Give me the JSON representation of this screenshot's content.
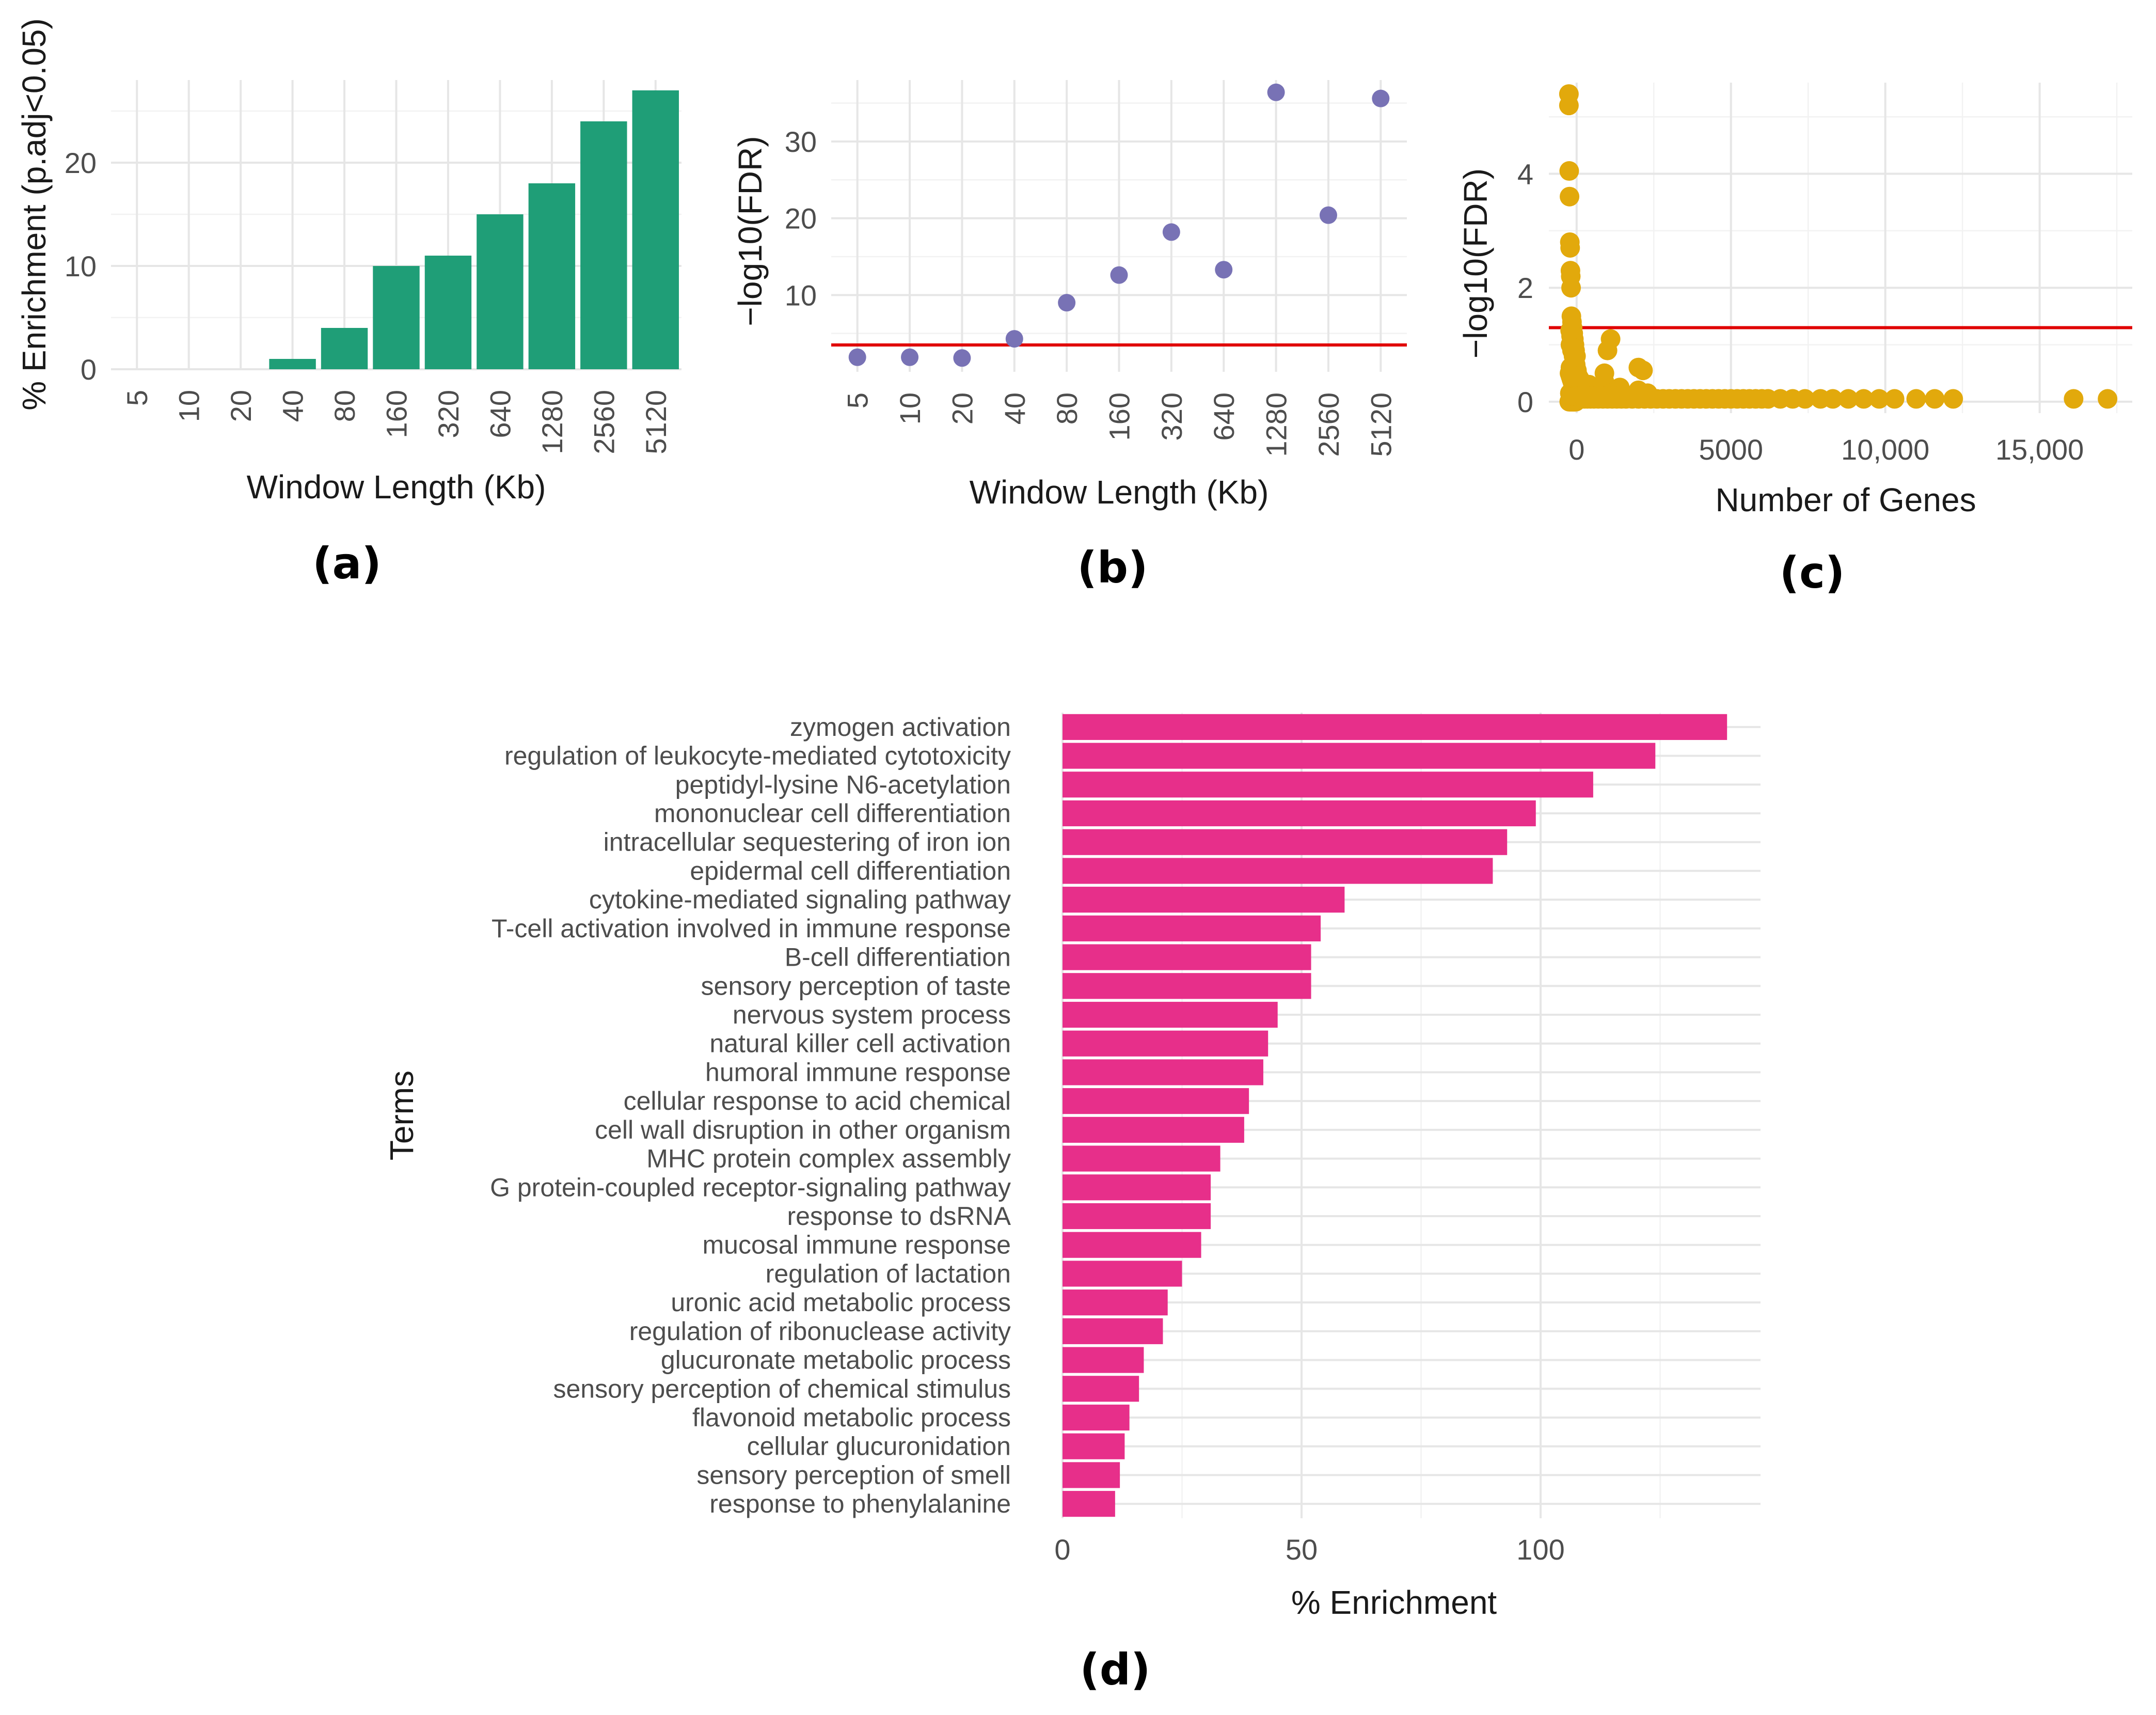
{
  "figure_labels": {
    "a": "(a)",
    "b": "(b)",
    "c": "(c)",
    "d": "(d)"
  },
  "colors": {
    "panel_a": "#1f9e77",
    "panel_b": "#7872b5",
    "panel_c": "#e2a90c",
    "panel_d": "#e72f8a",
    "threshold": "#e00000"
  },
  "chart_data": [
    {
      "id": "a",
      "type": "bar",
      "title": "",
      "xlabel": "Window Length (Kb)",
      "ylabel": "% Enrichment (p.adj<0.05)",
      "categories": [
        "5",
        "10",
        "20",
        "40",
        "80",
        "160",
        "320",
        "640",
        "1280",
        "2560",
        "5120"
      ],
      "values": [
        0,
        0,
        0,
        1,
        4,
        10,
        11,
        15,
        18,
        24,
        27
      ],
      "ylim": [
        0,
        28
      ],
      "yticks": [
        "0",
        "10",
        "20"
      ],
      "grid": true
    },
    {
      "id": "b",
      "type": "scatter",
      "xlabel": "Window Length (Kb)",
      "ylabel": "−log10(FDR)",
      "categories": [
        "5",
        "10",
        "20",
        "40",
        "80",
        "160",
        "320",
        "640",
        "1280",
        "2560",
        "5120"
      ],
      "values": [
        1.9,
        1.9,
        1.8,
        4.3,
        9.0,
        12.6,
        18.2,
        13.3,
        36.4,
        20.4,
        35.6
      ],
      "threshold": 3.5,
      "ylim": [
        0,
        38
      ],
      "yticks": [
        "10",
        "20",
        "30"
      ],
      "grid": true
    },
    {
      "id": "c",
      "type": "scatter",
      "xlabel": "Number of Genes",
      "ylabel": "−log10(FDR)",
      "xticks": [
        "0",
        "5000",
        "10,000",
        "15,000"
      ],
      "yticks": [
        "0",
        "2",
        "4"
      ],
      "xlim": [
        -900,
        18000
      ],
      "ylim": [
        -0.2,
        5.6
      ],
      "threshold": 1.3,
      "x": [
        -250,
        -250,
        -240,
        -230,
        -220,
        -210,
        -200,
        -190,
        -180,
        -170,
        -150,
        -130,
        -110,
        -90,
        -70,
        -50,
        -20,
        -200,
        -150,
        -100,
        -60,
        -20,
        20,
        60,
        120,
        180,
        260,
        350,
        450,
        560,
        700,
        850,
        1000,
        1150,
        1300,
        1450,
        1600,
        1800,
        2000,
        2200,
        2400,
        2600,
        2800,
        3000,
        3200,
        3400,
        3600,
        3800,
        4000,
        4200,
        4400,
        4600,
        4800,
        5000,
        5200,
        5400,
        5600,
        5800,
        6000,
        6200,
        6600,
        7000,
        7400,
        7900,
        8300,
        8800,
        9300,
        9800,
        10300,
        11000,
        11600,
        12200,
        16100,
        17200,
        -200,
        -150,
        -100,
        -60,
        -20,
        -220,
        -180,
        -140,
        -100,
        -60,
        -20,
        200,
        400,
        700,
        900,
        1100,
        1400,
        1700,
        2000,
        2300,
        -230,
        -200,
        -170,
        -140,
        -110,
        -80,
        -40,
        0,
        -210,
        -180,
        -150,
        -120,
        -90,
        -60,
        -30,
        10,
        50,
        100,
        150,
        220,
        300,
        420,
        550,
        -240,
        -210,
        -180,
        -150,
        -120,
        -90,
        -60,
        -30,
        -200,
        -170,
        -140,
        -110,
        -80,
        -50,
        -20,
        20,
        70,
        130,
        200,
        280,
        380,
        500,
        650,
        800,
        950,
        1150,
        1350,
        1600,
        1900,
        1000,
        1100,
        900,
        2000,
        2150
      ],
      "y": [
        5.4,
        5.2,
        4.05,
        3.6,
        2.8,
        2.7,
        2.3,
        2.2,
        2.0,
        1.5,
        1.4,
        1.3,
        1.2,
        1.1,
        1.0,
        0.9,
        0.8,
        0.6,
        0.5,
        0.4,
        0.3,
        0.2,
        0.1,
        0.05,
        0.05,
        0.05,
        0.05,
        0.05,
        0.05,
        0.05,
        0.05,
        0.05,
        0.05,
        0.05,
        0.05,
        0.05,
        0.05,
        0.05,
        0.05,
        0.05,
        0.05,
        0.05,
        0.05,
        0.05,
        0.05,
        0.05,
        0.05,
        0.05,
        0.05,
        0.05,
        0.05,
        0.05,
        0.05,
        0.05,
        0.05,
        0.05,
        0.05,
        0.05,
        0.05,
        0.05,
        0.05,
        0.05,
        0.05,
        0.05,
        0.05,
        0.05,
        0.05,
        0.05,
        0.05,
        0.05,
        0.05,
        0.05,
        0.05,
        0.05,
        1.0,
        0.9,
        0.8,
        0.7,
        0.6,
        0.15,
        0.15,
        0.15,
        0.15,
        0.15,
        0.15,
        0.25,
        0.3,
        0.2,
        0.35,
        0.15,
        0.25,
        0.1,
        0.2,
        0.15,
        0.5,
        0.45,
        0.4,
        0.35,
        0.3,
        0.25,
        0.2,
        0.15,
        1.25,
        1.15,
        1.05,
        0.95,
        0.85,
        0.75,
        0.65,
        0.55,
        0.45,
        0.4,
        0.35,
        0.3,
        0.25,
        0.2,
        0.15,
        0.0,
        0.0,
        0.0,
        0.0,
        0.0,
        0.0,
        0.0,
        0.0,
        0.1,
        0.1,
        0.1,
        0.1,
        0.1,
        0.1,
        0.1,
        0.1,
        0.1,
        0.1,
        0.1,
        0.1,
        0.1,
        0.1,
        0.1,
        0.1,
        0.1,
        0.1,
        0.1,
        0.1,
        0.1,
        0.9,
        1.1,
        0.5,
        0.6,
        0.55
      ],
      "grid": true
    },
    {
      "id": "d",
      "type": "bar",
      "orientation": "horizontal",
      "xlabel": "% Enrichment",
      "ylabel": "Terms",
      "xlim": [
        0,
        146
      ],
      "xticks": [
        "0",
        "50",
        "100"
      ],
      "categories": [
        "zymogen activation",
        "regulation of leukocyte-mediated cytotoxicity",
        "peptidyl-lysine N6-acetylation",
        "mononuclear cell differentiation",
        "intracellular sequestering of iron ion",
        "epidermal cell differentiation",
        "cytokine-mediated signaling pathway",
        "T-cell activation involved in immune response",
        "B-cell differentiation",
        "sensory perception of taste",
        "nervous system process",
        "natural killer cell activation",
        "humoral immune response",
        "cellular response to acid chemical",
        "cell wall disruption in other organism",
        "MHC protein complex assembly",
        "G protein-coupled receptor-signaling pathway",
        "response to dsRNA",
        "mucosal immune response",
        "regulation of lactation",
        "uronic acid metabolic process",
        "regulation of ribonuclease activity",
        "glucuronate metabolic process",
        "sensory perception of chemical stimulus",
        "flavonoid metabolic process",
        "cellular glucuronidation",
        "sensory perception of smell",
        "response to phenylalanine"
      ],
      "values": [
        139,
        124,
        111,
        99,
        93,
        90,
        59,
        54,
        52,
        52,
        45,
        43,
        42,
        39,
        38,
        33,
        31,
        31,
        29,
        25,
        22,
        21,
        17,
        16,
        14,
        13,
        12,
        11
      ],
      "grid": true
    }
  ]
}
